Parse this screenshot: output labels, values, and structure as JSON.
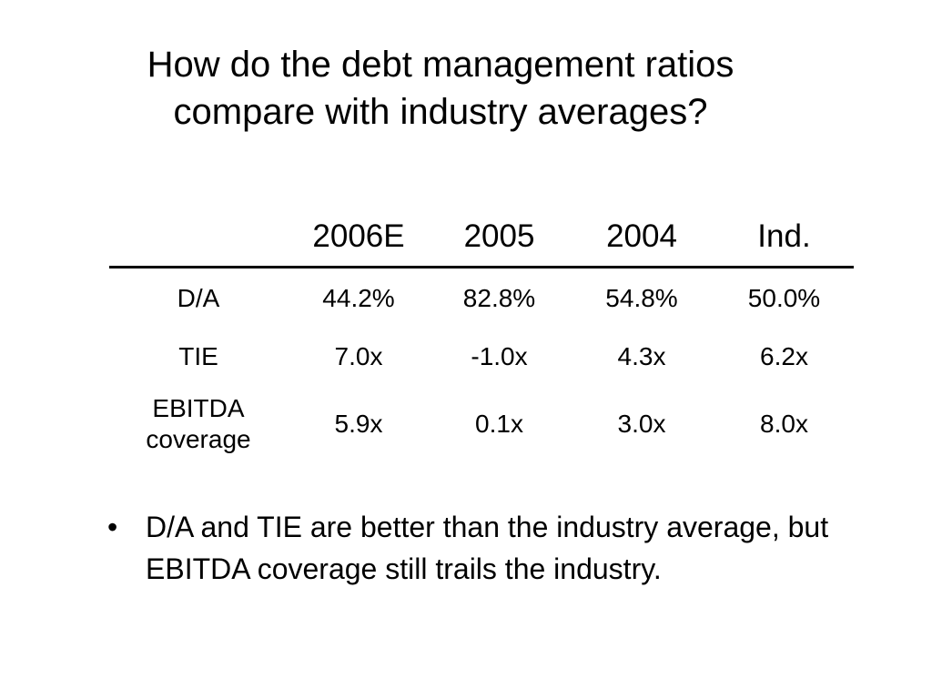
{
  "title": {
    "line1": "How do the debt management ratios",
    "line2": "compare with industry averages?"
  },
  "table": {
    "columns": [
      "",
      "2006E",
      "2005",
      "2004",
      "Ind."
    ],
    "rows": [
      {
        "label": "D/A",
        "values": [
          "44.2%",
          "82.8%",
          "54.8%",
          "50.0%"
        ]
      },
      {
        "label": "TIE",
        "values": [
          "7.0x",
          "-1.0x",
          "4.3x",
          "6.2x"
        ]
      },
      {
        "label_line1": "EBITDA",
        "label_line2": "coverage",
        "values": [
          "5.9x",
          "0.1x",
          "3.0x",
          "8.0x"
        ]
      }
    ]
  },
  "bullets": [
    {
      "marker": "•",
      "text": "D/A and TIE are better than the industry average, but EBITDA coverage still trails the industry."
    }
  ]
}
